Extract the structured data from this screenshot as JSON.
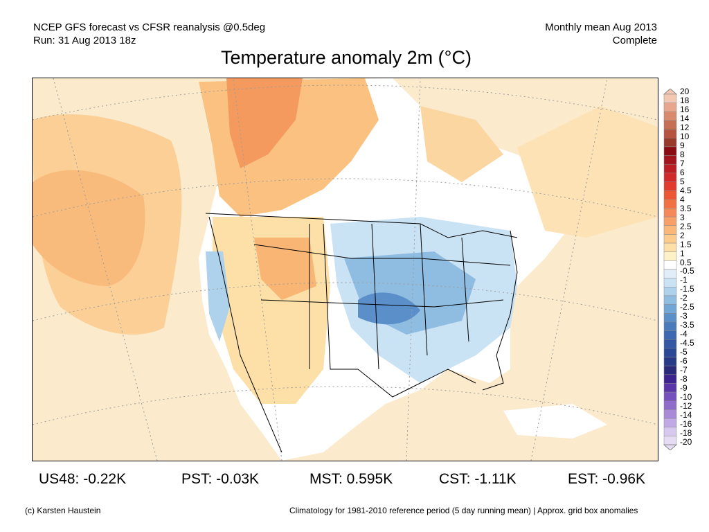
{
  "header": {
    "line1": "NCEP GFS forecast vs CFSR reanalysis @0.5deg",
    "line2": "Run: 31 Aug 2013 18z",
    "right1": "Monthly mean Aug 2013",
    "right2": "Complete"
  },
  "title": "Temperature anomaly 2m (°C)",
  "colorbar": {
    "labels": [
      "20",
      "18",
      "16",
      "14",
      "12",
      "10",
      "9",
      "8",
      "7",
      "6",
      "5",
      "4.5",
      "4",
      "3.5",
      "3",
      "2.5",
      "2",
      "1.5",
      "1",
      "0.5",
      "-0.5",
      "-1",
      "-1.5",
      "-2",
      "-2.5",
      "-3",
      "-3.5",
      "-4",
      "-4.5",
      "-5",
      "-6",
      "-7",
      "-8",
      "-9",
      "-10",
      "-12",
      "-14",
      "-16",
      "-18",
      "-20"
    ],
    "colors": [
      "#f4c7b3",
      "#e8a68e",
      "#d9896c",
      "#c66f55",
      "#b5543f",
      "#9a3a2b",
      "#8a0c12",
      "#a3141c",
      "#bd1e24",
      "#d22a2a",
      "#e23c2f",
      "#ec5634",
      "#f27143",
      "#f6895a",
      "#f8a067",
      "#fbb777",
      "#fccb8c",
      "#fde0a7",
      "#fdf1c8",
      "#ffffff",
      "#e1eefa",
      "#c9e2f4",
      "#aed1ec",
      "#8fbde2",
      "#72a6d6",
      "#5b8fca",
      "#4a7bbd",
      "#3e68b1",
      "#3458a4",
      "#2b4896",
      "#263a88",
      "#2a2a7a",
      "#3c2390",
      "#5a35a8",
      "#7650bd",
      "#8f6ccc",
      "#a98ad9",
      "#c0a9e4",
      "#d6c8ee",
      "#e6ddf5"
    ]
  },
  "stats": [
    {
      "label": "US48: -0.22K"
    },
    {
      "label": "PST: -0.03K"
    },
    {
      "label": "MST: 0.595K"
    },
    {
      "label": "CST: -1.11K"
    },
    {
      "label": "EST: -0.96K"
    }
  ],
  "footer": {
    "left": "(c) Karsten Haustein",
    "right": "Climatology for 1981-2010 reference period (5 day running mean) | Approx. grid box anomalies"
  }
}
